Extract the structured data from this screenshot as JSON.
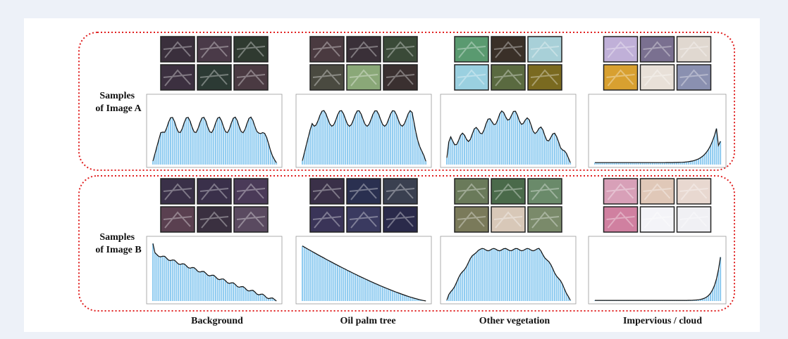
{
  "figure": {
    "rows": [
      {
        "label": [
          "Samples",
          "of Image A"
        ]
      },
      {
        "label": [
          "Samples",
          "of Image B"
        ]
      }
    ],
    "columns": [
      "Background",
      "Oil palm tree",
      "Other vegetation",
      "Impervious / cloud"
    ]
  }
}
